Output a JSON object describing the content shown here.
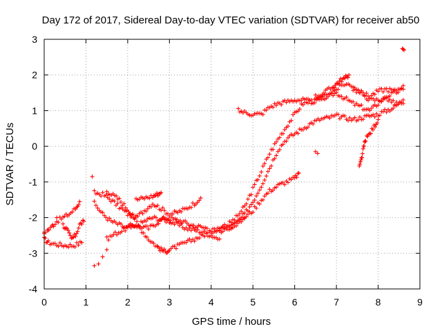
{
  "chart_data": {
    "type": "scatter",
    "title": "Day 172 of 2017, Sidereal Day-to-day VTEC variation (SDTVAR) for receiver ab50",
    "xlabel": "GPS time / hours",
    "ylabel": "SDTVAR / TECUs",
    "xlim": [
      0,
      9
    ],
    "ylim": [
      -4,
      3
    ],
    "xticks": [
      "0",
      "1",
      "2",
      "3",
      "4",
      "5",
      "6",
      "7",
      "8",
      "9"
    ],
    "yticks": [
      "-4",
      "-3",
      "-2",
      "-1",
      "0",
      "1",
      "2",
      "3"
    ],
    "grid": true,
    "marker": "+",
    "colors": {
      "points": "#ff0000",
      "grid": "#a0a0a0",
      "axes": "#000000"
    },
    "traces": [
      {
        "x": [
          0.0,
          0.1,
          0.3,
          0.5,
          0.7,
          0.9
        ],
        "y": [
          -2.6,
          -2.7,
          -2.75,
          -2.78,
          -2.78,
          -2.7
        ]
      },
      {
        "x": [
          0.0,
          0.15,
          0.3,
          0.45,
          0.6,
          0.75,
          0.85
        ],
        "y": [
          -2.4,
          -2.3,
          -2.1,
          -2.0,
          -1.9,
          -1.75,
          -1.55
        ]
      },
      {
        "x": [
          0.0,
          0.1,
          0.2,
          0.3
        ],
        "y": [
          -2.45,
          -2.35,
          -2.2,
          -2.0
        ]
      },
      {
        "x": [
          0.45,
          0.55,
          0.65,
          0.75,
          0.85,
          0.95
        ],
        "y": [
          -2.2,
          -2.35,
          -2.6,
          -2.5,
          -2.2,
          -2.1
        ]
      },
      {
        "x": [
          1.2,
          1.3,
          1.4,
          1.5
        ],
        "y": [
          -3.35,
          -3.3,
          -3.1,
          -2.9
        ]
      },
      {
        "x": [
          1.2,
          1.4,
          1.6,
          1.8,
          2.0,
          2.2,
          2.4,
          2.6,
          2.8,
          3.0,
          3.2,
          3.4,
          3.6,
          3.75
        ],
        "y": [
          -1.3,
          -1.35,
          -1.5,
          -1.7,
          -1.9,
          -2.0,
          -1.8,
          -1.6,
          -1.75,
          -1.9,
          -1.85,
          -1.75,
          -1.6,
          -1.45
        ]
      },
      {
        "x": [
          1.2,
          1.4,
          1.6,
          1.8,
          2.0,
          2.2,
          2.4,
          2.6,
          2.8,
          3.0,
          3.2,
          3.4,
          3.6,
          3.8,
          4.0,
          4.2
        ],
        "y": [
          -1.6,
          -1.9,
          -2.1,
          -2.2,
          -2.3,
          -2.25,
          -2.1,
          -2.0,
          -2.05,
          -2.1,
          -2.2,
          -2.3,
          -2.35,
          -2.4,
          -2.5,
          -2.6
        ]
      },
      {
        "x": [
          1.5,
          1.7,
          1.9,
          2.1,
          2.3,
          2.5,
          2.7,
          2.9,
          3.1,
          3.3,
          3.5,
          3.7,
          3.9
        ],
        "y": [
          -2.6,
          -2.45,
          -2.35,
          -2.2,
          -2.25,
          -2.3,
          -2.15,
          -2.0,
          -2.05,
          -2.1,
          -2.2,
          -2.25,
          -2.3
        ]
      },
      {
        "x": [
          1.5,
          1.8,
          2.1,
          2.3,
          2.5,
          2.7,
          2.8,
          2.9,
          3.0,
          3.2,
          3.4,
          3.6,
          3.8,
          4.0,
          4.2,
          4.4,
          4.6,
          4.8
        ],
        "y": [
          -1.25,
          -1.5,
          -1.9,
          -2.3,
          -2.6,
          -2.8,
          -2.9,
          -2.95,
          -2.9,
          -2.8,
          -2.7,
          -2.6,
          -2.5,
          -2.4,
          -2.3,
          -2.2,
          -2.1,
          -2.0
        ]
      },
      {
        "x": [
          2.2,
          2.4,
          2.6,
          2.7,
          2.8
        ],
        "y": [
          -1.5,
          -1.45,
          -1.4,
          -1.35,
          -1.3
        ]
      },
      {
        "x": [
          4.0,
          4.2,
          4.4,
          4.6,
          4.8,
          5.0,
          5.2,
          5.4,
          5.6,
          5.8,
          6.0,
          6.2,
          6.4,
          6.6,
          6.8,
          7.0,
          7.2,
          7.4,
          7.6,
          7.8,
          8.0,
          8.2,
          8.4,
          8.6
        ],
        "y": [
          -2.35,
          -2.3,
          -2.2,
          -2.0,
          -1.7,
          -1.2,
          -0.7,
          -0.2,
          0.2,
          0.55,
          0.9,
          1.2,
          1.25,
          1.3,
          1.4,
          1.5,
          1.35,
          1.2,
          1.1,
          1.0,
          1.2,
          1.4,
          1.5,
          1.6
        ]
      },
      {
        "x": [
          4.2,
          4.4,
          4.6,
          4.8,
          5.0,
          5.2,
          5.4,
          5.6,
          5.8,
          6.0,
          6.2,
          6.4,
          6.6,
          6.8,
          7.0,
          7.2,
          7.4,
          7.6,
          7.8,
          8.0,
          8.2,
          8.4,
          8.6
        ],
        "y": [
          -2.4,
          -2.3,
          -2.15,
          -1.9,
          -1.55,
          -1.1,
          -0.6,
          -0.1,
          0.2,
          0.35,
          0.5,
          0.65,
          0.75,
          0.8,
          0.85,
          0.8,
          0.75,
          0.8,
          0.85,
          0.9,
          1.0,
          1.1,
          1.3
        ]
      },
      {
        "x": [
          4.4,
          4.6,
          4.8,
          5.0,
          5.2,
          5.4,
          5.6,
          5.8,
          6.0,
          6.1
        ],
        "y": [
          -2.3,
          -2.2,
          -2.0,
          -1.8,
          -1.5,
          -1.25,
          -1.1,
          -1.0,
          -0.9,
          -0.75
        ]
      },
      {
        "x": [
          4.65,
          4.8,
          5.0,
          5.2,
          5.4,
          5.6,
          5.8,
          6.0,
          6.2,
          6.4,
          6.6,
          6.8,
          7.0,
          7.2,
          7.4,
          7.6,
          7.8,
          8.0,
          8.2,
          8.4,
          8.6
        ],
        "y": [
          1.0,
          0.95,
          0.9,
          0.9,
          1.1,
          1.2,
          1.25,
          1.3,
          1.3,
          1.25,
          1.3,
          1.45,
          1.6,
          1.75,
          1.7,
          1.5,
          1.4,
          1.55,
          1.6,
          1.55,
          1.7
        ]
      },
      {
        "x": [
          6.5,
          6.7,
          6.9,
          7.0,
          7.1,
          7.2,
          7.3
        ],
        "y": [
          1.4,
          1.5,
          1.65,
          1.75,
          1.85,
          1.9,
          2.0
        ]
      },
      {
        "x": [
          7.4,
          7.6,
          7.8,
          8.0,
          8.2,
          8.4,
          8.6
        ],
        "y": [
          1.6,
          1.5,
          1.3,
          1.3,
          1.35,
          1.2,
          1.2
        ]
      },
      {
        "x": [
          7.55,
          7.6,
          7.65,
          7.7,
          7.8,
          7.9,
          8.0
        ],
        "y": [
          -0.6,
          -0.35,
          -0.05,
          0.2,
          0.35,
          0.55,
          0.75
        ]
      },
      {
        "x": [
          6.5,
          6.55
        ],
        "y": [
          -0.15,
          -0.2
        ]
      },
      {
        "x": [
          1.15,
          8.6,
          8.62,
          8.58
        ],
        "y": [
          -0.85,
          2.72,
          2.7,
          2.74
        ]
      }
    ]
  }
}
